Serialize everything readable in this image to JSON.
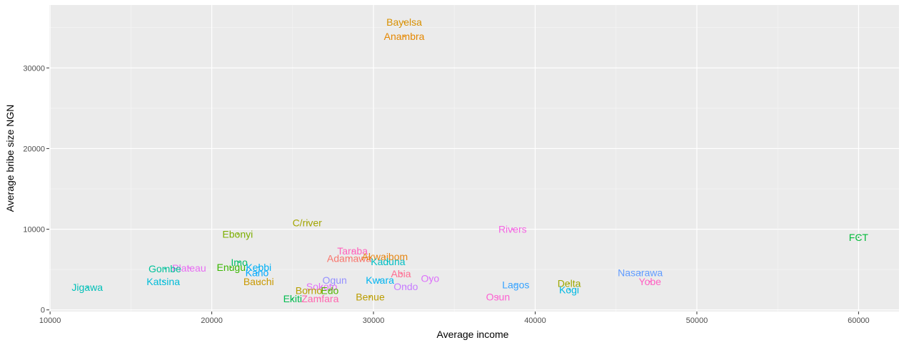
{
  "chart_data": {
    "type": "scatter",
    "title": "",
    "xlabel": "Average income",
    "ylabel": "Average bribe size NGN",
    "xlim": [
      9950,
      62500
    ],
    "ylim": [
      -200,
      37800
    ],
    "x_ticks": [
      10000,
      20000,
      30000,
      40000,
      50000,
      60000
    ],
    "y_ticks": [
      0,
      10000,
      20000,
      30000
    ],
    "x_tick_labels": [
      "10000",
      "20000",
      "30000",
      "40000",
      "50000",
      "60000"
    ],
    "y_tick_labels": [
      "0",
      "10000",
      "20000",
      "30000"
    ],
    "grid": true,
    "legend": "none",
    "points": [
      {
        "label": "Bayelsa",
        "x": 31900,
        "y": 35700,
        "color": "#D89000"
      },
      {
        "label": "Anambra",
        "x": 31900,
        "y": 33900,
        "color": "#E58700"
      },
      {
        "label": "FCT",
        "x": 60000,
        "y": 9000,
        "color": "#00BA38"
      },
      {
        "label": "C/river",
        "x": 25900,
        "y": 10800,
        "color": "#A3A500"
      },
      {
        "label": "Rivers",
        "x": 38600,
        "y": 10000,
        "color": "#F564E3"
      },
      {
        "label": "Ebonyi",
        "x": 21600,
        "y": 9400,
        "color": "#7CAE00"
      },
      {
        "label": "Taraba",
        "x": 28700,
        "y": 7300,
        "color": "#FF62BC"
      },
      {
        "label": "Adamawa",
        "x": 28500,
        "y": 6400,
        "color": "#F8766D"
      },
      {
        "label": "Akwaibom",
        "x": 30700,
        "y": 6600,
        "color": "#E68613"
      },
      {
        "label": "Kaduna",
        "x": 30900,
        "y": 6000,
        "color": "#00BFC4"
      },
      {
        "label": "Imo",
        "x": 21700,
        "y": 5900,
        "color": "#00BE67"
      },
      {
        "label": "Enugu",
        "x": 21200,
        "y": 5300,
        "color": "#39B600"
      },
      {
        "label": "Kebbi",
        "x": 22900,
        "y": 5300,
        "color": "#00B0F6"
      },
      {
        "label": "Plateau",
        "x": 18600,
        "y": 5200,
        "color": "#E76BF3"
      },
      {
        "label": "Gombe",
        "x": 17100,
        "y": 5100,
        "color": "#00C19A"
      },
      {
        "label": "Kano",
        "x": 22800,
        "y": 4600,
        "color": "#00A9FF"
      },
      {
        "label": "Nasarawa",
        "x": 46500,
        "y": 4600,
        "color": "#619CFF"
      },
      {
        "label": "Abia",
        "x": 31700,
        "y": 4500,
        "color": "#FF6C91"
      },
      {
        "label": "Oyo",
        "x": 33500,
        "y": 3900,
        "color": "#DC71FA"
      },
      {
        "label": "Katsina",
        "x": 17000,
        "y": 3500,
        "color": "#00BCD8"
      },
      {
        "label": "Bauchi",
        "x": 22900,
        "y": 3500,
        "color": "#C99800"
      },
      {
        "label": "Yobe",
        "x": 47100,
        "y": 3500,
        "color": "#FF61C3"
      },
      {
        "label": "Ogun",
        "x": 27600,
        "y": 3700,
        "color": "#9590FF"
      },
      {
        "label": "Kwara",
        "x": 30400,
        "y": 3700,
        "color": "#00B4F0"
      },
      {
        "label": "Delta",
        "x": 42100,
        "y": 3300,
        "color": "#9DA700"
      },
      {
        "label": "Lagos",
        "x": 38800,
        "y": 3100,
        "color": "#35A2FF"
      },
      {
        "label": "Ondo",
        "x": 32000,
        "y": 2900,
        "color": "#C77CFF"
      },
      {
        "label": "Sokoto",
        "x": 26800,
        "y": 2900,
        "color": "#E36EF6"
      },
      {
        "label": "Jigawa",
        "x": 12300,
        "y": 2800,
        "color": "#00C0B8"
      },
      {
        "label": "Borno",
        "x": 26000,
        "y": 2400,
        "color": "#B79F00"
      },
      {
        "label": "Edo",
        "x": 27300,
        "y": 2400,
        "color": "#53B400"
      },
      {
        "label": "Kogi",
        "x": 42100,
        "y": 2500,
        "color": "#00B9E3"
      },
      {
        "label": "Benue",
        "x": 29800,
        "y": 1600,
        "color": "#BB9D00"
      },
      {
        "label": "Osun",
        "x": 37700,
        "y": 1600,
        "color": "#FD61D1"
      },
      {
        "label": "Ekiti",
        "x": 25000,
        "y": 1400,
        "color": "#00BB4E"
      },
      {
        "label": "Zamfara",
        "x": 26700,
        "y": 1400,
        "color": "#FF65AE"
      }
    ]
  }
}
